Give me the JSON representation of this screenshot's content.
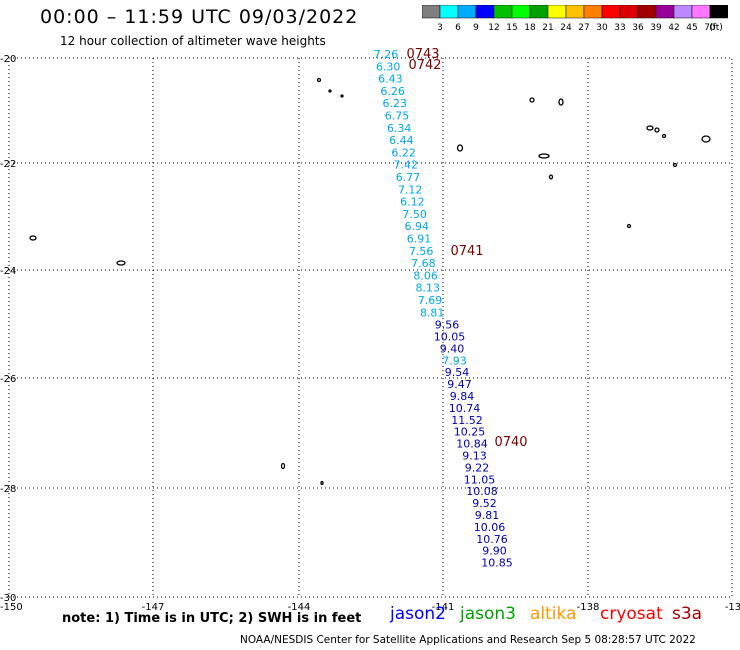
{
  "title": "00:00 – 11:59 UTC 09/03/2022",
  "subtitle": "12 hour collection of altimeter wave heights",
  "color_scale": {
    "labels": [
      "3",
      "6",
      "9",
      "12",
      "15",
      "18",
      "21",
      "24",
      "27",
      "30",
      "33",
      "36",
      "39",
      "42",
      "45",
      "70",
      "(ft)"
    ],
    "colors": [
      "#7f7f7f",
      "#00ffff",
      "#00aaff",
      "#0000ff",
      "#00c000",
      "#00ff00",
      "#00a000",
      "#ffff00",
      "#ffc000",
      "#ff8000",
      "#ff0000",
      "#dd0000",
      "#a00000",
      "#990099",
      "#bb88ff",
      "#ff77ff",
      "#000000"
    ]
  },
  "axes": {
    "lat_labels": [
      "-20",
      "-22",
      "-24",
      "-26",
      "-28",
      "-30"
    ],
    "lon_labels": [
      "-150",
      "-147",
      "-144",
      "-141",
      "-138",
      "-13"
    ]
  },
  "time_labels": [
    "0743",
    "0742",
    "0741",
    "0740"
  ],
  "wave_heights_cyan": [
    "7.26",
    "6.30",
    "6.43",
    "6.26",
    "6.23",
    "6.75",
    "6.34",
    "6.44",
    "6.22",
    "7.42",
    "6.77",
    "7.12",
    "6.12",
    "7.50",
    "6.94",
    "6.91",
    "7.56",
    "7.68",
    "8.06",
    "8.13",
    "7.69",
    "8.81"
  ],
  "wave_heights_mixed": [
    {
      "v": "9.56",
      "c": "blue"
    },
    {
      "v": "10.05",
      "c": "blue"
    },
    {
      "v": "9.40",
      "c": "blue"
    },
    {
      "v": "7.93",
      "c": "cyan"
    },
    {
      "v": "9.54",
      "c": "blue"
    },
    {
      "v": "9.47",
      "c": "blue"
    },
    {
      "v": "9.84",
      "c": "blue"
    },
    {
      "v": "10.74",
      "c": "blue"
    },
    {
      "v": "11.52",
      "c": "blue"
    },
    {
      "v": "10.25",
      "c": "blue"
    },
    {
      "v": "10.84",
      "c": "blue"
    },
    {
      "v": "9.13",
      "c": "blue"
    },
    {
      "v": "9.22",
      "c": "blue"
    },
    {
      "v": "11.05",
      "c": "blue"
    },
    {
      "v": "10.08",
      "c": "blue"
    },
    {
      "v": "9.52",
      "c": "blue"
    },
    {
      "v": "9.81",
      "c": "blue"
    },
    {
      "v": "10.06",
      "c": "blue"
    },
    {
      "v": "10.76",
      "c": "blue"
    },
    {
      "v": "9.90",
      "c": "blue"
    },
    {
      "v": "10.85",
      "c": "blue"
    }
  ],
  "note": "note:  1) Time is in UTC;  2) SWH is in feet",
  "legend": [
    {
      "name": "jason2",
      "color": "#0000ff"
    },
    {
      "name": "jason3",
      "color": "#00a000"
    },
    {
      "name": "altika",
      "color": "#ff9900"
    },
    {
      "name": "cryosat",
      "color": "#ff0000"
    },
    {
      "name": "s3a",
      "color": "#a00000"
    }
  ],
  "footer": "NOAA/NESDIS Center for Satellite Applications and Research    Sep  5 08:28:57 UTC 2022"
}
